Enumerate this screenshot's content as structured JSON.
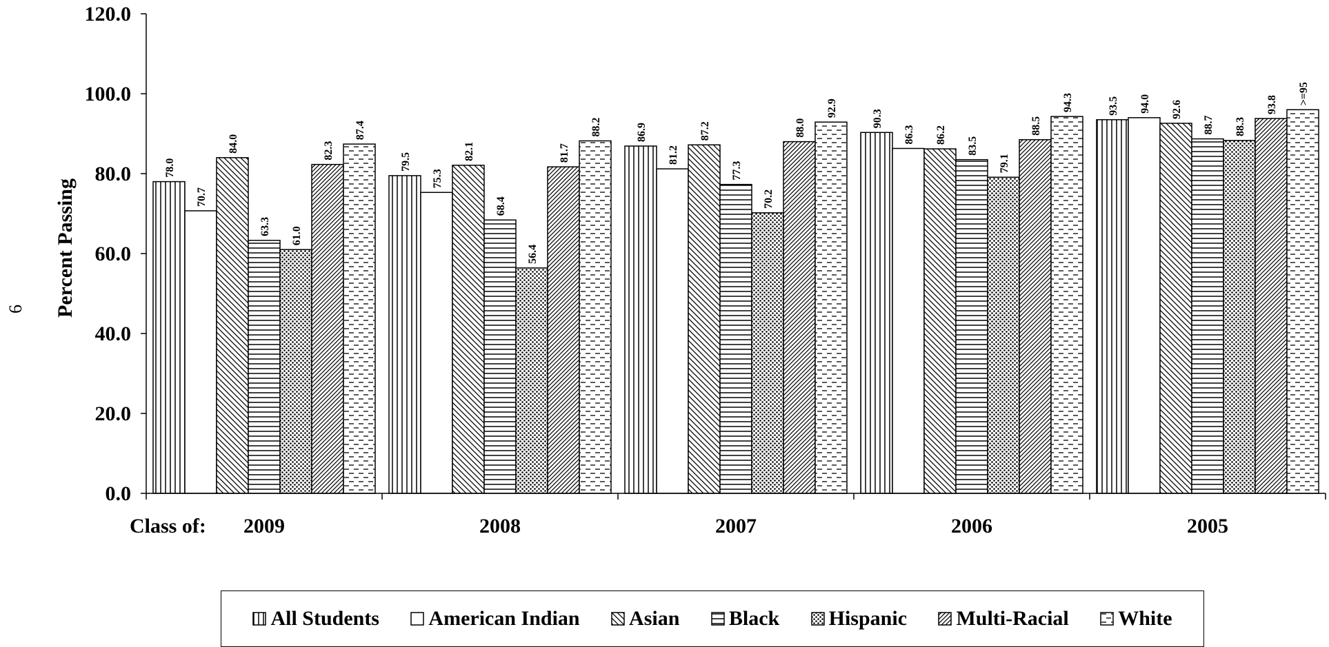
{
  "page_number": "6",
  "chart_data": {
    "type": "bar",
    "title": "",
    "ylabel": "Percent Passing",
    "xlabel_prefix": "Class of:",
    "ylim": [
      0,
      120
    ],
    "yticks": [
      "0.0",
      "20.0",
      "40.0",
      "60.0",
      "80.0",
      "100.0",
      "120.0"
    ],
    "categories": [
      "2009",
      "2008",
      "2007",
      "2006",
      "2005"
    ],
    "legend_position": "bottom",
    "series": [
      {
        "name": "All Students",
        "pattern": "vertical",
        "values": [
          78.0,
          79.5,
          86.9,
          90.3,
          93.5
        ],
        "labels": [
          "78.0",
          "79.5",
          "86.9",
          "90.3",
          "93.5"
        ]
      },
      {
        "name": "American Indian",
        "pattern": "none",
        "values": [
          70.7,
          75.3,
          81.2,
          86.3,
          94.0
        ],
        "labels": [
          "70.7",
          "75.3",
          "81.2",
          "86.3",
          "94.0"
        ]
      },
      {
        "name": "Asian",
        "pattern": "diag-back",
        "values": [
          84.0,
          82.1,
          87.2,
          86.2,
          92.6
        ],
        "labels": [
          "84.0",
          "82.1",
          "87.2",
          "86.2",
          "92.6"
        ]
      },
      {
        "name": "Black",
        "pattern": "horizontal",
        "values": [
          63.3,
          68.4,
          77.3,
          83.5,
          88.7
        ],
        "labels": [
          "63.3",
          "68.4",
          "77.3",
          "83.5",
          "88.7"
        ]
      },
      {
        "name": "Hispanic",
        "pattern": "dots",
        "values": [
          61.0,
          56.4,
          70.2,
          79.1,
          88.3
        ],
        "labels": [
          "61.0",
          "56.4",
          "70.2",
          "79.1",
          "88.3"
        ]
      },
      {
        "name": "Multi-Racial",
        "pattern": "diag-fwd",
        "values": [
          82.3,
          81.7,
          88.0,
          88.5,
          93.8
        ],
        "labels": [
          "82.3",
          "81.7",
          "88.0",
          "88.5",
          "93.8"
        ]
      },
      {
        "name": "White",
        "pattern": "dashes",
        "values": [
          87.4,
          88.2,
          92.9,
          94.3,
          96.0
        ],
        "labels": [
          "87.4",
          "88.2",
          "92.9",
          "94.3",
          ">=95"
        ]
      }
    ]
  }
}
